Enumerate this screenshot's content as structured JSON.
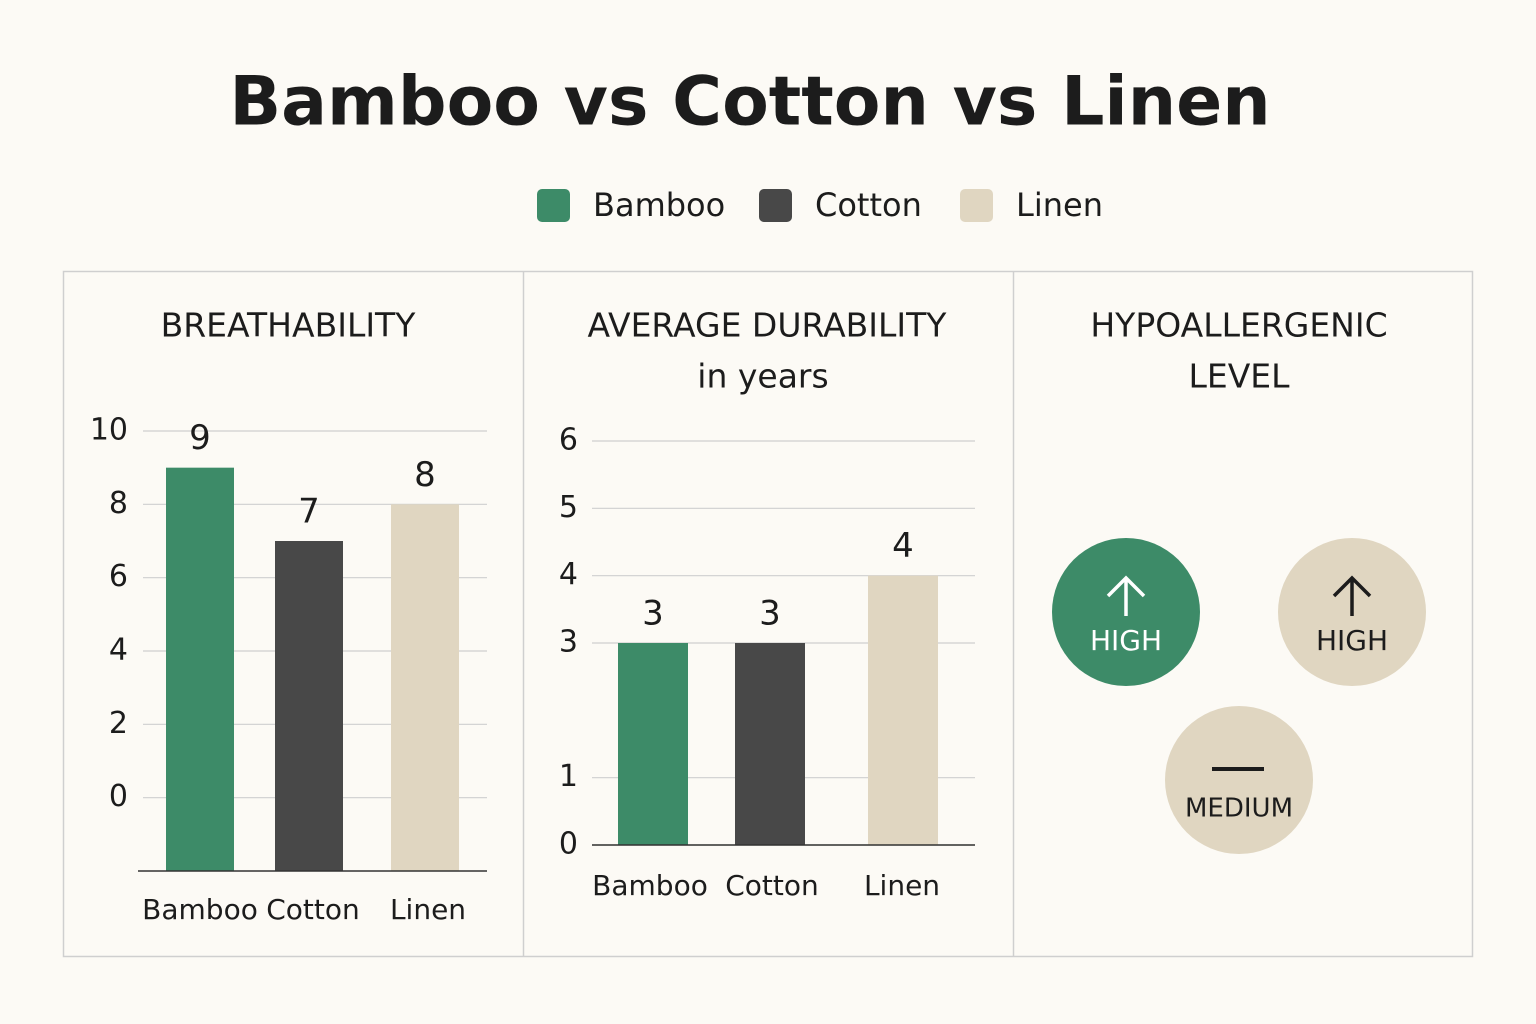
{
  "title": "Bamboo vs Cotton vs Linen",
  "legend": [
    {
      "name": "Bamboo",
      "color": "#3d8b68"
    },
    {
      "name": "Cotton",
      "color": "#484848"
    },
    {
      "name": "Linen",
      "color": "#e0d6c1"
    }
  ],
  "chart_data": [
    {
      "type": "bar",
      "title": "BREATHABILITY",
      "categories": [
        "Bamboo",
        "Cotton",
        "Linen"
      ],
      "values": [
        9,
        7,
        8
      ],
      "colors": [
        "#3d8b68",
        "#484848",
        "#e0d6c1"
      ],
      "ylim": [
        -2,
        10
      ],
      "yticks": [
        0,
        2,
        4,
        6,
        8,
        10
      ],
      "grid": true
    },
    {
      "type": "bar",
      "title": "AVERAGE DURABILITY",
      "subtitle": "in years",
      "categories": [
        "Bamboo",
        "Cotton",
        "Linen"
      ],
      "values": [
        3,
        3,
        4
      ],
      "colors": [
        "#3d8b68",
        "#484848",
        "#e0d6c1"
      ],
      "ylim": [
        0,
        6
      ],
      "yticks": [
        0,
        1,
        3,
        4,
        5,
        6
      ],
      "grid": true
    }
  ],
  "hypoallergenic": {
    "title": [
      "HYPOALLERGENIC",
      "LEVEL"
    ],
    "items": [
      {
        "label": "HIGH",
        "color": "#3d8b68"
      },
      {
        "label": "HIGH",
        "color": "#e0d6c1"
      },
      {
        "label": "MEDIUM",
        "color": "#e0d6c1"
      }
    ]
  }
}
